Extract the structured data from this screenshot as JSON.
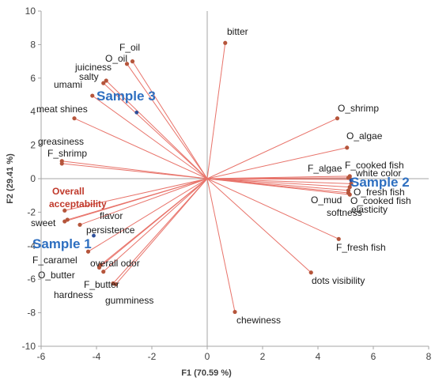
{
  "chart_data": {
    "type": "scatter",
    "subtype": "biplot",
    "xlabel": "F1 (70.59 %)",
    "ylabel": "F2 (29.41 %)",
    "xlim": [
      -6,
      8
    ],
    "ylim": [
      -10,
      10
    ],
    "xticks": [
      "-6",
      "-4",
      "-2",
      "0",
      "2",
      "4",
      "6",
      "8"
    ],
    "yticks": [
      "-10",
      "-8",
      "-6",
      "-4",
      "-2",
      "0",
      "2",
      "4",
      "6",
      "8",
      "10"
    ],
    "grid": false,
    "colors": {
      "vector": "#e8736a",
      "point": "#b5553b",
      "sample_label": "#2e6fc0",
      "sample_point": "#2e4f9a",
      "highlight_label": "#c0392b",
      "axis": "#a6a6a6"
    },
    "variables": [
      {
        "name": "bitter",
        "x": 0.65,
        "y": 8.1
      },
      {
        "name": "F_oil",
        "x": -2.7,
        "y": 7.0
      },
      {
        "name": "O_oil",
        "x": -2.9,
        "y": 6.85
      },
      {
        "name": "juiciness",
        "x": -3.65,
        "y": 5.85
      },
      {
        "name": "salty",
        "x": -3.75,
        "y": 5.7
      },
      {
        "name": "umami",
        "x": -4.15,
        "y": 4.95
      },
      {
        "name": "meat shines",
        "x": -4.8,
        "y": 3.6
      },
      {
        "name": "greasiness",
        "x": -5.25,
        "y": 1.05
      },
      {
        "name": "F_shrimp",
        "x": -5.25,
        "y": 0.9
      },
      {
        "name": "Overall acceptability",
        "x": -5.15,
        "y": -1.9
      },
      {
        "name": "sweet",
        "x": -5.15,
        "y": -2.55
      },
      {
        "name": "flavor",
        "x": -5.05,
        "y": -2.45
      },
      {
        "name": "persistence",
        "x": -4.6,
        "y": -2.75
      },
      {
        "name": "F_caramel",
        "x": -4.3,
        "y": -4.35
      },
      {
        "name": "O_butter",
        "x": -3.9,
        "y": -5.3
      },
      {
        "name": "overall odor",
        "x": -3.85,
        "y": -5.15
      },
      {
        "name": "F_butter",
        "x": -3.75,
        "y": -5.55
      },
      {
        "name": "hardness",
        "x": -3.4,
        "y": -6.25
      },
      {
        "name": "gumminess",
        "x": -3.3,
        "y": -6.3
      },
      {
        "name": "chewiness",
        "x": 1.0,
        "y": -7.95
      },
      {
        "name": "dots visibility",
        "x": 3.75,
        "y": -5.6
      },
      {
        "name": "F_fresh fish",
        "x": 4.75,
        "y": -3.6
      },
      {
        "name": "O_shrimp",
        "x": 4.7,
        "y": 3.6
      },
      {
        "name": "O_algae",
        "x": 5.05,
        "y": 1.85
      },
      {
        "name": "F_cooked fish",
        "x": 5.15,
        "y": 0.15
      },
      {
        "name": "F_algae",
        "x": 5.1,
        "y": 0.05
      },
      {
        "name": "white color",
        "x": 5.2,
        "y": -0.05
      },
      {
        "name": "O_fresh fish",
        "x": 5.15,
        "y": -0.5
      },
      {
        "name": "O_mud",
        "x": 5.1,
        "y": -0.85
      },
      {
        "name": "O_cooked fish",
        "x": 5.15,
        "y": -0.95
      },
      {
        "name": "elasticity",
        "x": 5.1,
        "y": -0.7
      },
      {
        "name": "softness",
        "x": 5.2,
        "y": -0.3
      }
    ],
    "samples": [
      {
        "name": "Sample 1",
        "x": -4.1,
        "y": -3.4
      },
      {
        "name": "Sample 2",
        "x": 5.2,
        "y": -0.1
      },
      {
        "name": "Sample 3",
        "x": -2.55,
        "y": 3.95
      }
    ],
    "label_text": {
      "bitter": "bitter",
      "F_oil": "F_oil",
      "O_oil": "O_oil",
      "juiciness": "juiciness",
      "salty": "salty",
      "umami": "umami",
      "meat_shines": "meat shines",
      "greasiness": "greasiness",
      "F_shrimp": "F_shrimp",
      "overall_1": "Overall",
      "overall_2": "acceptability",
      "sweet": "sweet",
      "flavor": "flavor",
      "persistence": "persistence",
      "F_caramel": "F_caramel",
      "O_butter": "O_butter",
      "overall_odor": "overall odor",
      "F_butter": "F_butter",
      "hardness": "hardness",
      "gumminess": "gumminess",
      "chewiness": "chewiness",
      "dots_visibility": "dots visibility",
      "F_fresh_fish": "F_fresh fish",
      "O_shrimp": "O_shrimp",
      "O_algae": "O_algae",
      "F_cooked_fish": "F_cooked fish",
      "F_algae": "F_algae",
      "white_color": "white color",
      "O_fresh_fish": "O_fresh fish",
      "O_mud": "O_mud",
      "O_cooked_fish": "O_cooked fish",
      "elasticity": "elasticity",
      "softness": "softness",
      "sample1": "Sample 1",
      "sample2": "Sample 2",
      "sample3": "Sample 3"
    }
  }
}
